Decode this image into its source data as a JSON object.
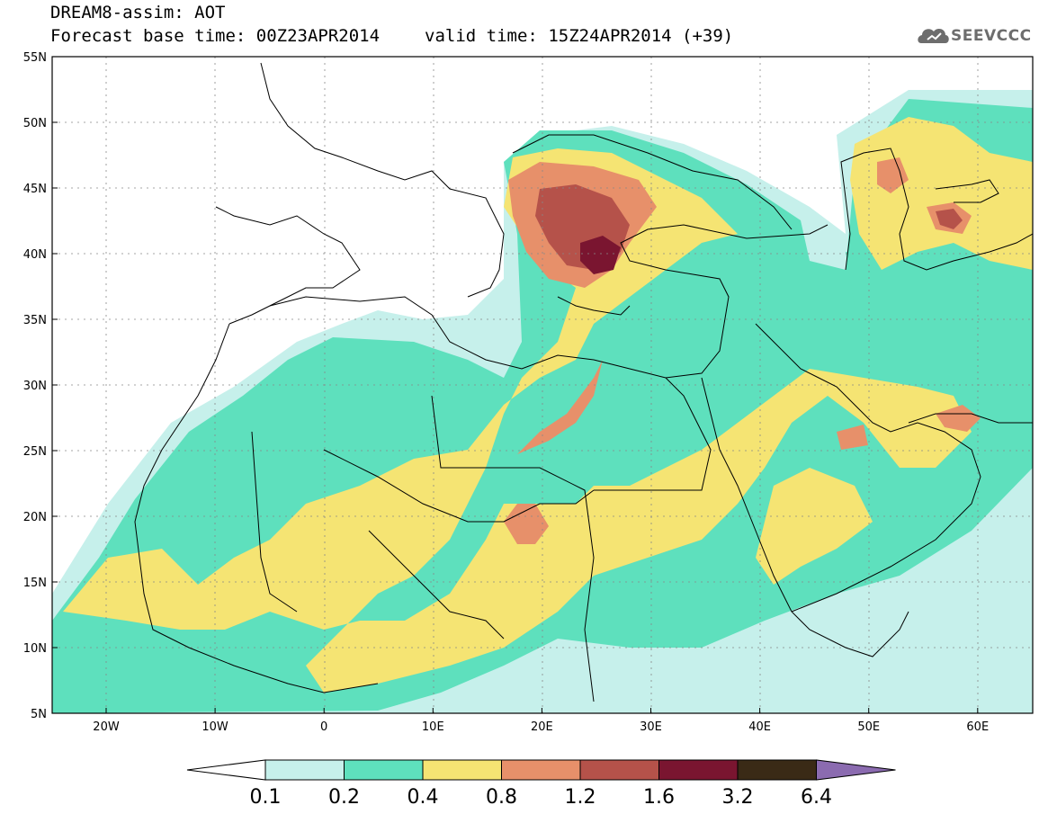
{
  "header": {
    "line1": "DREAM8-assim: AOT",
    "base_time": "Forecast base time: 00Z23APR2014",
    "valid_time": "valid time: 15Z24APR2014 (+39)"
  },
  "logo": {
    "text": "SEEVCCC",
    "icon": "cloud-icon"
  },
  "map": {
    "lon_range": [
      -25,
      65
    ],
    "lat_range": [
      5,
      55
    ],
    "lat_labels": [
      "55N",
      "50N",
      "45N",
      "40N",
      "35N",
      "30N",
      "25N",
      "20N",
      "15N",
      "10N",
      "5N"
    ],
    "lon_labels": [
      "20W",
      "10W",
      "0",
      "10E",
      "20E",
      "30E",
      "40E",
      "50E",
      "60E"
    ]
  },
  "colorbar": {
    "labels": [
      "0.1",
      "0.2",
      "0.4",
      "0.8",
      "1.2",
      "1.6",
      "3.2",
      "6.4"
    ],
    "colors": [
      "#c6f0eb",
      "#5ee0bd",
      "#f5e473",
      "#e7906a",
      "#b5524a",
      "#7a1530",
      "#3a2a16",
      "#8b6bb0"
    ]
  }
}
